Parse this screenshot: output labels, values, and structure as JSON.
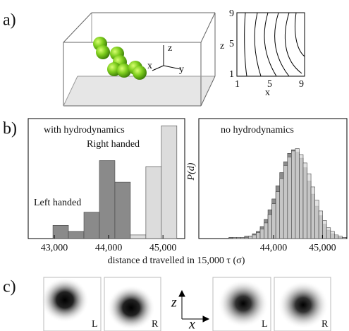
{
  "panel_a": {
    "label": "a)",
    "axis_z": "z",
    "axis_x": "x",
    "axis_y": "y",
    "contour_yticks": [
      "9",
      "5",
      "1"
    ],
    "contour_ylabel": "z",
    "contour_xticks": [
      "1",
      "5",
      "9"
    ],
    "contour_xlabel": "x"
  },
  "panel_b": {
    "label": "b)",
    "xlabel": "distance d travelled in 15,000 τ (σ)"
  },
  "chart_data": [
    {
      "type": "histogram",
      "title": "with hydrodynamics",
      "bins": [
        42975,
        43260,
        43545,
        43830,
        44115,
        44400,
        44685,
        44970,
        45255
      ],
      "series": [
        {
          "name": "Left handed",
          "color": "#8a8a8a",
          "values": [
            11,
            6,
            22,
            65,
            47,
            0,
            0,
            0
          ]
        },
        {
          "name": "Right handed",
          "color": "#dcdcdc",
          "values": [
            0,
            0,
            0,
            0,
            0,
            3,
            60,
            94
          ]
        }
      ],
      "xlim": [
        42520,
        45400
      ],
      "ylim": [
        0,
        100
      ],
      "xticks": [
        {
          "value": 43000,
          "label": "43,000"
        },
        {
          "value": 44000,
          "label": "44,000"
        },
        {
          "value": 45000,
          "label": "45,000"
        }
      ]
    },
    {
      "type": "histogram",
      "title": "no hydrodynamics",
      "ylabel": "P(d)",
      "bins": [
        42525,
        42605,
        42685,
        42765,
        42845,
        42925,
        43005,
        43085,
        43165,
        43245,
        43325,
        43405,
        43485,
        43565,
        43645,
        43725,
        43805,
        43885,
        43965,
        44045,
        44125,
        44205,
        44285,
        44365,
        44445,
        44525,
        44605,
        44685,
        44765,
        44845,
        44925,
        45005,
        45085,
        45165,
        45245,
        45325,
        45405,
        45485
      ],
      "series": [
        {
          "color": "#8c8c8c",
          "values": [
            0,
            0,
            0,
            0,
            0,
            0,
            0,
            1,
            1,
            1,
            1,
            2,
            2,
            4,
            6,
            10,
            16,
            24,
            33,
            44,
            55,
            64,
            71,
            74,
            72,
            67,
            59,
            48,
            37,
            27,
            19,
            12,
            7,
            4,
            2,
            1,
            1
          ]
        },
        {
          "color": "#dadada",
          "values": [
            0,
            0,
            0,
            0,
            0,
            0,
            0,
            0,
            1,
            1,
            1,
            1,
            2,
            3,
            5,
            8,
            13,
            20,
            29,
            39,
            50,
            61,
            68,
            73,
            75,
            70,
            63,
            54,
            43,
            32,
            23,
            15,
            9,
            6,
            3,
            2,
            1
          ]
        }
      ],
      "xlim": [
        42470,
        45500
      ],
      "ylim": [
        0,
        100
      ],
      "xticks": [
        {
          "value": 44000,
          "label": "44,000"
        },
        {
          "value": 45000,
          "label": "45,000"
        }
      ]
    }
  ],
  "panel_c": {
    "label": "c)",
    "images": [
      {
        "label": "L"
      },
      {
        "label": "R"
      },
      {
        "label": "L"
      },
      {
        "label": "R"
      }
    ],
    "axis_z": "z",
    "axis_x": "x"
  }
}
